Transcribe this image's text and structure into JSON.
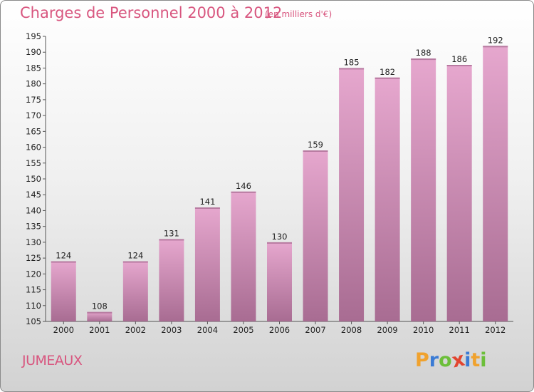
{
  "header": {
    "title": "Charges de Personnel 2000 à 2012",
    "subtitle": "(en milliers d'€)"
  },
  "footer": {
    "commune": "JUMEAUX",
    "brand_letters": [
      "P",
      "r",
      "o",
      "x",
      "i",
      "t",
      "i"
    ],
    "brand_colors": [
      "#f0a22e",
      "#3a7bd5",
      "#6cbf3a",
      "#e2452f",
      "#3a7bd5",
      "#f0a22e",
      "#6cbf3a"
    ]
  },
  "colors": {
    "bar_light": "#e6a7ce",
    "bar_dark": "#a86c92",
    "title": "#d8567f"
  },
  "chart_data": {
    "type": "bar",
    "categories": [
      "2000",
      "2001",
      "2002",
      "2003",
      "2004",
      "2005",
      "2006",
      "2007",
      "2008",
      "2009",
      "2010",
      "2011",
      "2012"
    ],
    "values": [
      124,
      108,
      124,
      131,
      141,
      146,
      130,
      159,
      185,
      182,
      188,
      186,
      192
    ],
    "title": "Charges de Personnel 2000 à 2012",
    "subtitle": "(en milliers d'€)",
    "xlabel": "",
    "ylabel": "",
    "ylim": [
      105,
      195
    ],
    "yticks": [
      105,
      110,
      115,
      120,
      125,
      130,
      135,
      140,
      145,
      150,
      155,
      160,
      165,
      170,
      175,
      180,
      185,
      190,
      195
    ],
    "grid": false,
    "legend": "none"
  }
}
